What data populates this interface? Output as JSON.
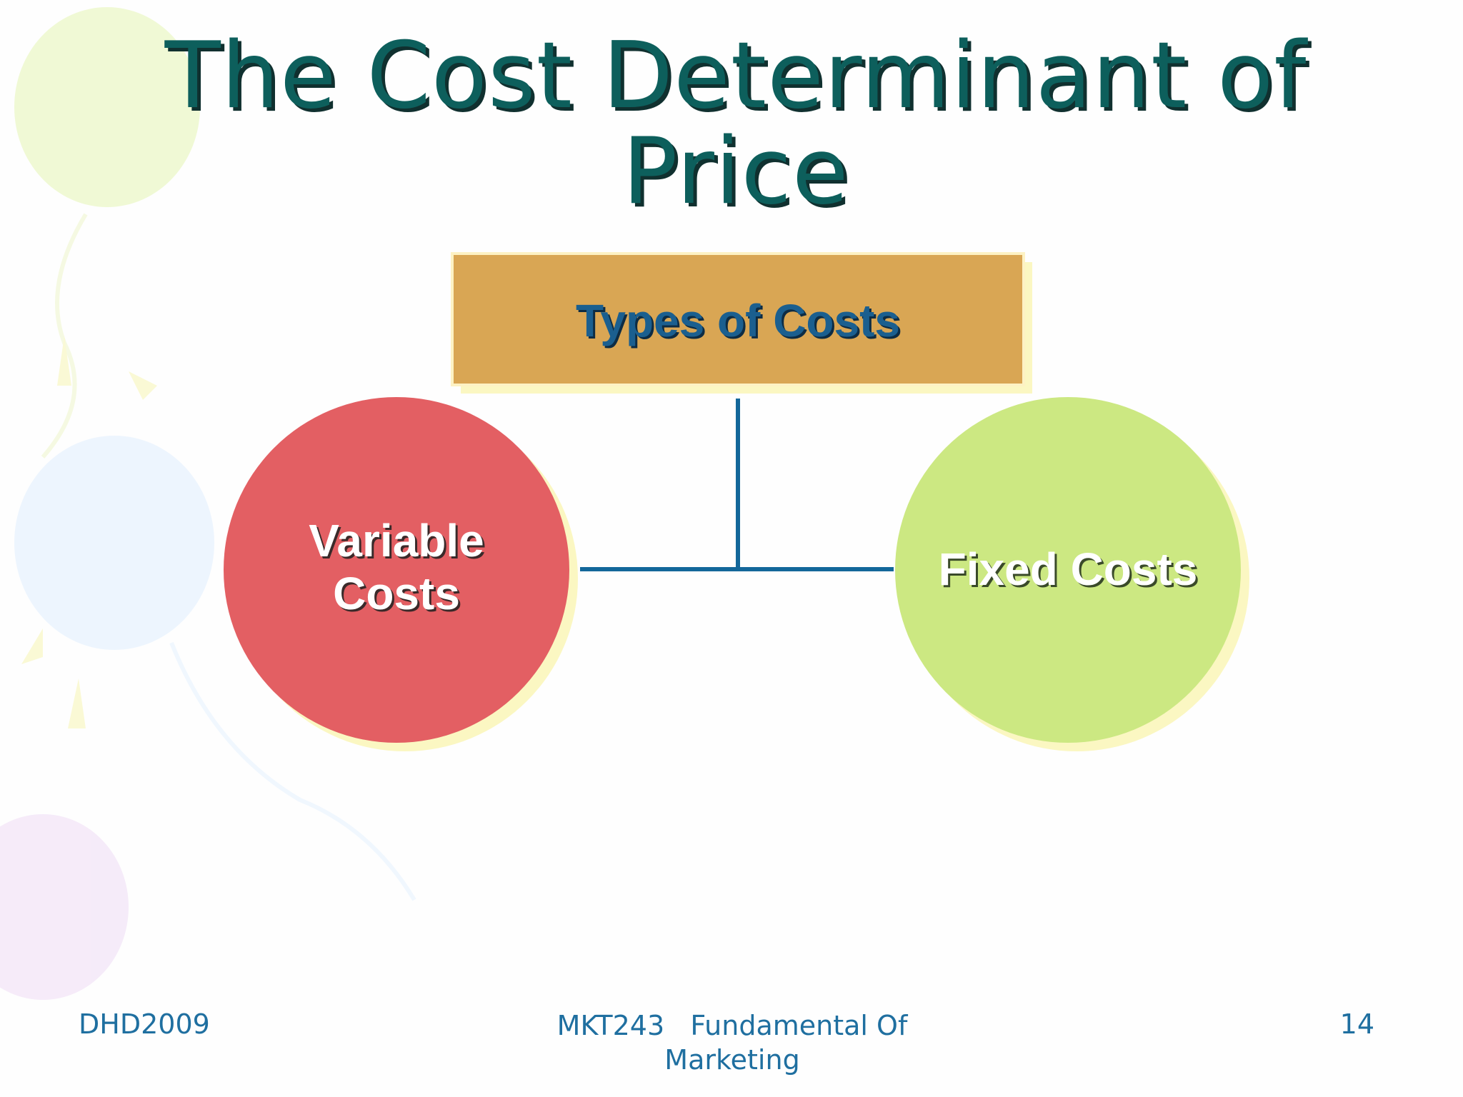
{
  "title": "The Cost Determinant of Price",
  "diagram": {
    "root": {
      "label": "Types of Costs"
    },
    "children": [
      {
        "label": "Variable Costs"
      },
      {
        "label": "Fixed Costs"
      }
    ]
  },
  "footer": {
    "left": "DHD2009",
    "center": "MKT243   Fundamental Of Marketing",
    "right": "14"
  }
}
